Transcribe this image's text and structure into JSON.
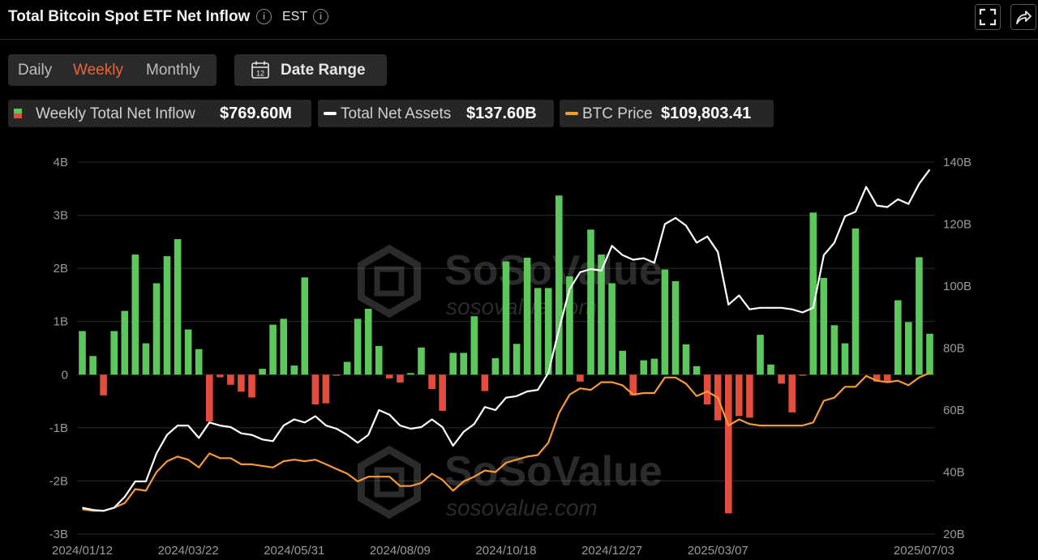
{
  "header": {
    "title": "Total Bitcoin Spot ETF Net Inflow",
    "timezone": "EST",
    "info_icon": "info-icon",
    "expand_icon": "fullscreen-icon",
    "share_icon": "share-icon"
  },
  "controls": {
    "periods": [
      "Daily",
      "Weekly",
      "Monthly"
    ],
    "active_period": "Weekly",
    "date_range_label": "Date Range",
    "date_range_icon": "calendar-icon",
    "calendar_day": "12"
  },
  "legend": {
    "inflow": {
      "label": "Weekly Total Net Inflow",
      "value": "$769.60M"
    },
    "assets": {
      "label": "Total Net Assets",
      "value": "$137.60B"
    },
    "price": {
      "label": "BTC Price",
      "value": "$109,803.41"
    }
  },
  "watermark": {
    "brand": "SoSoValue",
    "url": "sosovalue.com"
  },
  "colors": {
    "positive": "#5cc85c",
    "negative": "#e44c3c",
    "assets_line": "#ffffff",
    "price_line": "#f59a3a",
    "active_tab": "#f0633a",
    "background": "#000000"
  },
  "chart_data": {
    "type": "bar+line",
    "x_tick_labels": [
      "2024/01/12",
      "2024/03/22",
      "2024/05/31",
      "2024/08/09",
      "2024/10/18",
      "2024/12/27",
      "2025/03/07",
      "2025/07/03"
    ],
    "y_left": {
      "ticks": [
        "4B",
        "3B",
        "2B",
        "1B",
        "0",
        "-1B",
        "-2B",
        "-3B"
      ],
      "range": [
        -3,
        4
      ],
      "unit": "B"
    },
    "y_right": {
      "ticks": [
        "140B",
        "120B",
        "100B",
        "80B",
        "60B",
        "40B",
        "20B"
      ],
      "range": [
        20,
        140
      ],
      "unit": "B"
    },
    "series": [
      {
        "name": "Weekly Total Net Inflow",
        "kind": "bar",
        "values": [
          0.82,
          0.35,
          -0.39,
          0.82,
          1.2,
          2.26,
          0.59,
          1.72,
          2.23,
          2.55,
          0.85,
          0.48,
          -0.88,
          -0.05,
          -0.19,
          -0.32,
          -0.43,
          0.11,
          0.94,
          1.05,
          0.17,
          1.83,
          -0.56,
          -0.54,
          -0.02,
          0.24,
          1.05,
          1.24,
          0.54,
          -0.07,
          -0.15,
          0.03,
          0.51,
          -0.27,
          -0.68,
          0.41,
          0.41,
          1.1,
          -0.31,
          0.31,
          2.13,
          0.58,
          2.2,
          1.63,
          1.63,
          3.37,
          1.85,
          -0.13,
          2.73,
          2.26,
          1.72,
          0.45,
          -0.39,
          0.27,
          0.3,
          1.98,
          1.76,
          0.57,
          0.16,
          -0.56,
          -0.86,
          -2.61,
          -0.78,
          -0.81,
          0.75,
          0.19,
          -0.17,
          -0.71,
          -0.02,
          3.05,
          1.82,
          0.93,
          0.59,
          2.75,
          0,
          -0.13,
          -0.13,
          1.4,
          0.99,
          2.21,
          0.77
        ]
      },
      {
        "name": "Total Net Assets",
        "kind": "line",
        "axis": "right",
        "values": [
          28.5,
          27.8,
          27.5,
          28.5,
          32,
          37,
          37,
          46,
          52,
          55,
          55,
          51,
          56,
          55,
          54.5,
          52.5,
          52,
          50.5,
          50,
          55,
          57,
          56,
          58,
          55,
          54,
          52,
          49.5,
          52,
          60,
          58.5,
          55,
          54,
          54.5,
          57,
          54.5,
          48.5,
          53,
          55.5,
          61,
          60,
          64,
          64.5,
          66,
          66.5,
          72,
          86,
          99,
          104.5,
          105.5,
          105,
          113,
          110,
          108.5,
          109,
          107.5,
          120,
          122,
          119.5,
          114,
          116,
          111,
          94,
          97,
          92.5,
          93,
          93,
          93,
          92.5,
          91.5,
          93,
          110,
          114,
          122.5,
          124,
          132,
          126,
          125.5,
          128,
          126.5,
          133,
          137.6
        ]
      },
      {
        "name": "BTC Price",
        "kind": "line",
        "axis": "right",
        "values": [
          28,
          27.5,
          27.5,
          28.5,
          30,
          34.5,
          34,
          40,
          43.5,
          45,
          44,
          41.5,
          46,
          44.5,
          44.5,
          42.5,
          42.5,
          42,
          41.5,
          43.5,
          44,
          43.5,
          44,
          42.5,
          41,
          39.5,
          37,
          38.5,
          38.5,
          38.5,
          35.5,
          35.5,
          36.5,
          39.5,
          37.5,
          34,
          37,
          38.5,
          40.5,
          40,
          43,
          44,
          45,
          45.5,
          49.5,
          59,
          65,
          67,
          66.5,
          69,
          69,
          68,
          65,
          65.5,
          65.5,
          70.5,
          70.5,
          68.5,
          64.5,
          66,
          64,
          55,
          57,
          55.5,
          55,
          55,
          55,
          55,
          55,
          56,
          63,
          64,
          67.5,
          67.5,
          71,
          69.5,
          69,
          69.5,
          68,
          70.5,
          72
        ]
      }
    ],
    "grid": true,
    "legend_position": "top-left"
  }
}
